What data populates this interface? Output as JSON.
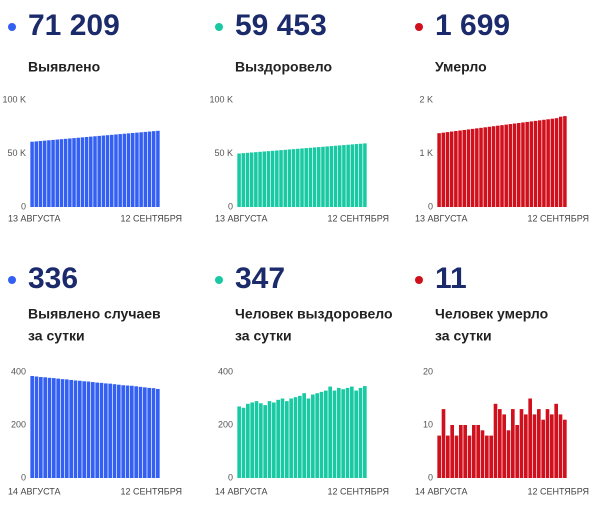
{
  "chart_data": [
    {
      "type": "bar",
      "title": "71 209",
      "subtitle": [
        "Выявлено"
      ],
      "color": "#3360f2",
      "categories": [
        "13 АВГУСТА",
        null,
        null,
        null,
        null,
        null,
        null,
        null,
        null,
        null,
        null,
        null,
        null,
        null,
        null,
        null,
        null,
        null,
        null,
        null,
        null,
        null,
        null,
        null,
        null,
        null,
        null,
        null,
        null,
        null,
        "12 СЕНТЯБРЯ"
      ],
      "values": [
        61000,
        61340,
        61680,
        62020,
        62360,
        62700,
        63040,
        63380,
        63720,
        64060,
        64400,
        64740,
        65080,
        65420,
        65760,
        66100,
        66440,
        66780,
        67120,
        67460,
        67800,
        68140,
        68480,
        68820,
        69160,
        69500,
        69840,
        70180,
        70520,
        70873,
        71209
      ],
      "ylim": [
        0,
        100000
      ],
      "yticks": [
        {
          "value": 0,
          "label": "0"
        },
        {
          "value": 50000,
          "label": "50 K"
        },
        {
          "value": 100000,
          "label": "100 K"
        }
      ]
    },
    {
      "type": "bar",
      "title": "59 453",
      "subtitle": [
        "Выздоровело"
      ],
      "color": "#19c9a3",
      "categories": [
        "13 АВГУСТА",
        null,
        null,
        null,
        null,
        null,
        null,
        null,
        null,
        null,
        null,
        null,
        null,
        null,
        null,
        null,
        null,
        null,
        null,
        null,
        null,
        null,
        null,
        null,
        null,
        null,
        null,
        null,
        null,
        null,
        "12 СЕНТЯБРЯ"
      ],
      "values": [
        50000,
        50315,
        50630,
        50945,
        51260,
        51575,
        51890,
        52205,
        52520,
        52835,
        53150,
        53465,
        53780,
        54095,
        54410,
        54725,
        55040,
        55355,
        55670,
        55985,
        56300,
        56615,
        56930,
        57245,
        57560,
        57875,
        58190,
        58505,
        58820,
        59106,
        59453
      ],
      "ylim": [
        0,
        100000
      ],
      "yticks": [
        {
          "value": 0,
          "label": "0"
        },
        {
          "value": 50000,
          "label": "50 K"
        },
        {
          "value": 100000,
          "label": "100 K"
        }
      ]
    },
    {
      "type": "bar",
      "title": "1 699",
      "subtitle": [
        "Умерло"
      ],
      "color": "#d0101c",
      "categories": [
        "13 АВГУСТА",
        null,
        null,
        null,
        null,
        null,
        null,
        null,
        null,
        null,
        null,
        null,
        null,
        null,
        null,
        null,
        null,
        null,
        null,
        null,
        null,
        null,
        null,
        null,
        null,
        null,
        null,
        null,
        null,
        null,
        "12 СЕНТЯБРЯ"
      ],
      "values": [
        1380,
        1390,
        1400,
        1410,
        1420,
        1430,
        1440,
        1450,
        1460,
        1470,
        1480,
        1490,
        1500,
        1510,
        1520,
        1530,
        1540,
        1550,
        1560,
        1570,
        1580,
        1590,
        1600,
        1610,
        1620,
        1630,
        1640,
        1650,
        1660,
        1688,
        1699
      ],
      "ylim": [
        0,
        2000
      ],
      "yticks": [
        {
          "value": 0,
          "label": "0"
        },
        {
          "value": 1000,
          "label": "1 K"
        },
        {
          "value": 2000,
          "label": "2 K"
        }
      ]
    },
    {
      "type": "bar",
      "title": "336",
      "subtitle": [
        "Выявлено случаев",
        "за сутки"
      ],
      "color": "#3360f2",
      "categories": [
        "14 АВГУСТА",
        null,
        null,
        null,
        null,
        null,
        null,
        null,
        null,
        null,
        null,
        null,
        null,
        null,
        null,
        null,
        null,
        null,
        null,
        null,
        null,
        null,
        null,
        null,
        null,
        null,
        null,
        null,
        null,
        "12 СЕНТЯБРЯ"
      ],
      "values": [
        385,
        383,
        381,
        380,
        378,
        377,
        375,
        373,
        372,
        370,
        368,
        367,
        365,
        364,
        362,
        360,
        359,
        357,
        356,
        354,
        352,
        350,
        349,
        348,
        346,
        344,
        342,
        340,
        339,
        336
      ],
      "ylim": [
        0,
        400
      ],
      "yticks": [
        0,
        200,
        400
      ]
    },
    {
      "type": "bar",
      "title": "347",
      "subtitle": [
        "Человек выздоровело",
        "за сутки"
      ],
      "color": "#19c9a3",
      "categories": [
        "14 АВГУСТА",
        null,
        null,
        null,
        null,
        null,
        null,
        null,
        null,
        null,
        null,
        null,
        null,
        null,
        null,
        null,
        null,
        null,
        null,
        null,
        null,
        null,
        null,
        null,
        null,
        null,
        null,
        null,
        null,
        "12 СЕНТЯБРЯ"
      ],
      "values": [
        270,
        265,
        280,
        285,
        290,
        282,
        275,
        290,
        285,
        295,
        300,
        290,
        300,
        305,
        310,
        320,
        300,
        315,
        320,
        325,
        330,
        345,
        330,
        340,
        335,
        340,
        345,
        330,
        340,
        347
      ],
      "ylim": [
        0,
        400
      ],
      "yticks": [
        0,
        200,
        400
      ]
    },
    {
      "type": "bar",
      "title": "11",
      "subtitle": [
        "Человек умерло",
        "за сутки"
      ],
      "color": "#d0101c",
      "categories": [
        "14 АВГУСТА",
        null,
        null,
        null,
        null,
        null,
        null,
        null,
        null,
        null,
        null,
        null,
        null,
        null,
        null,
        null,
        null,
        null,
        null,
        null,
        null,
        null,
        null,
        null,
        null,
        null,
        null,
        null,
        null,
        "12 СЕНТЯБРЯ"
      ],
      "values": [
        8,
        13,
        8,
        10,
        8,
        10,
        10,
        8,
        10,
        10,
        9,
        8,
        8,
        14,
        13,
        12,
        9,
        13,
        10,
        13,
        12,
        15,
        12,
        13,
        11,
        13,
        12,
        14,
        12,
        11
      ],
      "ylim": [
        0,
        20
      ],
      "yticks": [
        0,
        10,
        20
      ]
    }
  ]
}
